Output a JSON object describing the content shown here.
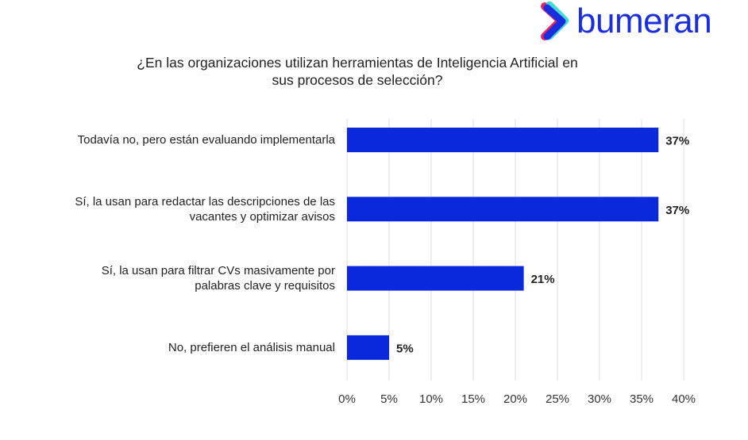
{
  "brand": {
    "name": "bumeran"
  },
  "chart_data": {
    "type": "bar",
    "orientation": "horizontal",
    "title": "¿En las organizaciones utilizan herramientas de Inteligencia Artificial en sus procesos de selección?",
    "title_lines": [
      "¿En las organizaciones utilizan herramientas de Inteligencia Artificial en",
      "sus procesos de selección?"
    ],
    "categories": [
      [
        "Todavía no, pero están evaluando implementarla"
      ],
      [
        "Sí, la usan para redactar las descripciones de las",
        "vacantes y optimizar avisos"
      ],
      [
        "Sí, la usan para filtrar CVs masivamente por",
        "palabras clave y requisitos"
      ],
      [
        "No, prefieren el análisis manual"
      ]
    ],
    "values": [
      37,
      37,
      21,
      5
    ],
    "data_labels": [
      "37%",
      "37%",
      "21%",
      "5%"
    ],
    "xlim": [
      0,
      40
    ],
    "xticks": [
      0,
      5,
      10,
      15,
      20,
      25,
      30,
      35,
      40
    ],
    "xtick_labels": [
      "0%",
      "5%",
      "10%",
      "15%",
      "20%",
      "25%",
      "30%",
      "35%",
      "40%"
    ],
    "grid": true,
    "bar_color": "#0a28dc",
    "xlabel": "",
    "ylabel": ""
  }
}
